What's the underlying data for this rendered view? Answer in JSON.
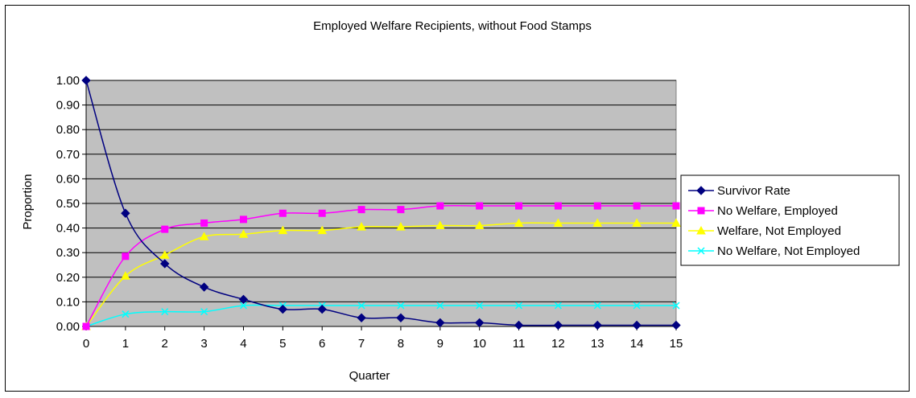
{
  "chart_data": {
    "type": "line",
    "title": "Employed Welfare Recipients, without Food Stamps",
    "xlabel": "Quarter",
    "ylabel": "Proportion",
    "x": [
      0,
      1,
      2,
      3,
      4,
      5,
      6,
      7,
      8,
      9,
      10,
      11,
      12,
      13,
      14,
      15
    ],
    "ylim": [
      0,
      1
    ],
    "yticks": [
      "0.00",
      "0.10",
      "0.20",
      "0.30",
      "0.40",
      "0.50",
      "0.60",
      "0.70",
      "0.80",
      "0.90",
      "1.00"
    ],
    "grid": true,
    "legend_position": "right",
    "plot_background": "#c0c0c0",
    "series": [
      {
        "name": "Survivor Rate",
        "color": "#000080",
        "marker": "diamond",
        "values": [
          1.0,
          0.46,
          0.255,
          0.16,
          0.11,
          0.07,
          0.07,
          0.035,
          0.035,
          0.015,
          0.015,
          0.005,
          0.005,
          0.005,
          0.005,
          0.005
        ]
      },
      {
        "name": "No Welfare, Employed",
        "color": "#ff00ff",
        "marker": "square",
        "values": [
          0.0,
          0.285,
          0.395,
          0.42,
          0.435,
          0.46,
          0.46,
          0.475,
          0.475,
          0.49,
          0.49,
          0.49,
          0.49,
          0.49,
          0.49,
          0.49
        ]
      },
      {
        "name": "Welfare, Not Employed",
        "color": "#ffff00",
        "marker": "triangle",
        "values": [
          0.0,
          0.205,
          0.29,
          0.365,
          0.375,
          0.39,
          0.39,
          0.405,
          0.405,
          0.41,
          0.41,
          0.42,
          0.42,
          0.42,
          0.42,
          0.42
        ]
      },
      {
        "name": "No Welfare, Not Employed",
        "color": "#00ffff",
        "marker": "x",
        "values": [
          0.0,
          0.05,
          0.06,
          0.06,
          0.085,
          0.085,
          0.085,
          0.085,
          0.085,
          0.085,
          0.085,
          0.085,
          0.085,
          0.085,
          0.085,
          0.085
        ]
      }
    ]
  }
}
